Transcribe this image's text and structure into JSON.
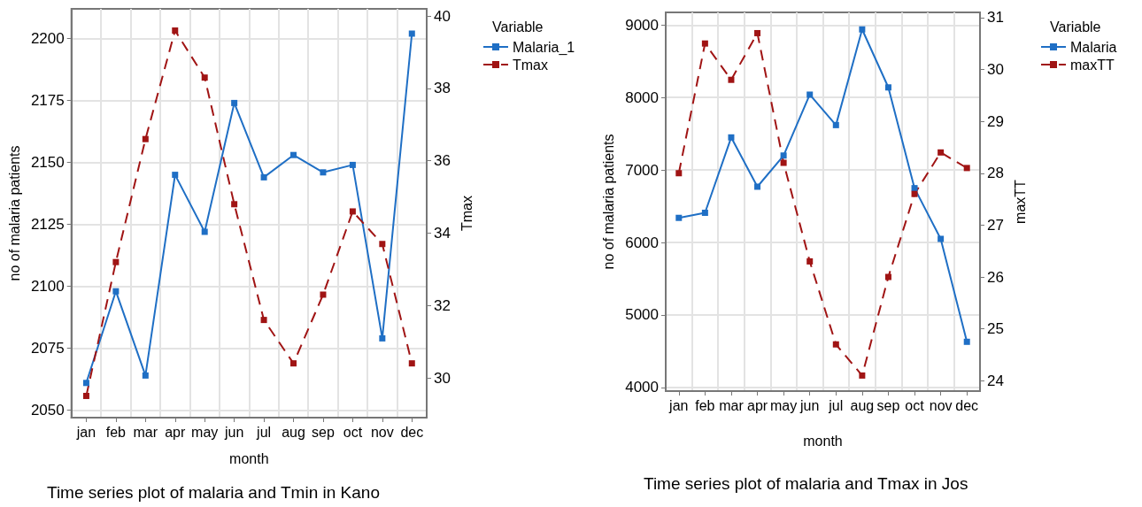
{
  "chart_data": [
    {
      "type": "line",
      "title": "Time series plot of malaria and Tmin in Kano",
      "xlabel": "month",
      "ylabel": "no of malaria patients",
      "y2label": "Tmax",
      "legend_title": "Variable",
      "categories": [
        "jan",
        "feb",
        "mar",
        "apr",
        "may",
        "jun",
        "jul",
        "aug",
        "sep",
        "oct",
        "nov",
        "dec"
      ],
      "series": [
        {
          "name": "Malaria_1",
          "color": "#1f6fc5",
          "line_style": "solid",
          "values": [
            2061,
            2098,
            2064,
            2145,
            2122,
            2174,
            2144,
            2153,
            2146,
            2149,
            2079,
            2202
          ]
        },
        {
          "name": "Tmax",
          "color": "#a01414",
          "line_style": "dashed",
          "axis": "y2",
          "values": [
            29.5,
            33.2,
            36.6,
            39.6,
            38.3,
            34.8,
            31.6,
            30.4,
            32.3,
            34.6,
            33.7,
            30.4
          ]
        }
      ],
      "ylim": [
        2047,
        2212
      ],
      "yticks": [
        2050,
        2075,
        2100,
        2125,
        2150,
        2175,
        2200
      ],
      "y2lim": [
        28.9,
        40.2
      ],
      "y2ticks": [
        30,
        32,
        34,
        36,
        38,
        40
      ],
      "grid": true,
      "legend": "right",
      "marker": "square"
    },
    {
      "type": "line",
      "title": "Time series plot of malaria and Tmax in Jos",
      "xlabel": "month",
      "ylabel": "no of malaria patients",
      "y2label": "maxTT",
      "legend_title": "Variable",
      "categories": [
        "jan",
        "feb",
        "mar",
        "apr",
        "may",
        "jun",
        "jul",
        "aug",
        "sep",
        "oct",
        "nov",
        "dec"
      ],
      "series": [
        {
          "name": "Malaria",
          "color": "#1f6fc5",
          "line_style": "solid",
          "values": [
            6340,
            6410,
            7450,
            6770,
            7200,
            8040,
            7620,
            8940,
            8140,
            6750,
            6050,
            4630
          ]
        },
        {
          "name": "maxTT",
          "color": "#a01414",
          "line_style": "dashed",
          "axis": "y2",
          "values": [
            28.0,
            30.5,
            29.8,
            30.7,
            28.2,
            26.3,
            24.7,
            24.1,
            26.0,
            27.6,
            28.4,
            28.1
          ]
        }
      ],
      "ylim": [
        3950,
        9175
      ],
      "yticks": [
        4000,
        5000,
        6000,
        7000,
        8000,
        9000
      ],
      "y2lim": [
        23.8,
        31.1
      ],
      "y2ticks": [
        24,
        25,
        26,
        27,
        28,
        29,
        30,
        31
      ],
      "grid": true,
      "legend": "right",
      "marker": "square"
    }
  ]
}
